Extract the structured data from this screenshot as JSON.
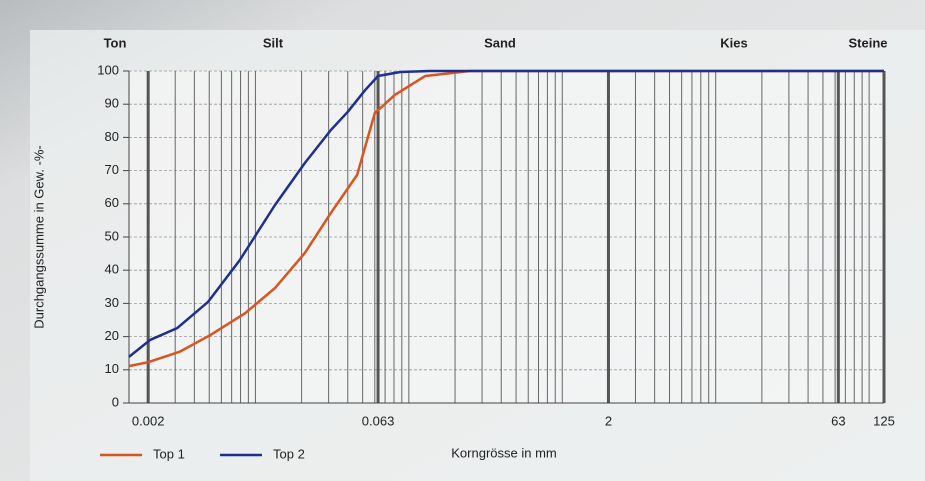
{
  "chart_data": {
    "type": "line",
    "zones": [
      "Ton",
      "Silt",
      "Sand",
      "Kies",
      "Steine"
    ],
    "x_label": "Korngrösse in mm",
    "y_label": "Durchgangssumme in Gew. -%-",
    "xlim": [
      0.0015,
      125
    ],
    "xticks": [
      0.002,
      0.063,
      2,
      63,
      125
    ],
    "ylim": [
      0,
      100
    ],
    "yticks": [
      0,
      10,
      20,
      30,
      40,
      50,
      60,
      70,
      80,
      90,
      100
    ],
    "log_x": true,
    "grid": true,
    "legend": "bottom-left",
    "series": [
      {
        "name": "Top 1",
        "color": "#d9541e",
        "x": [
          0.0015,
          0.002,
          0.0032,
          0.0051,
          0.0086,
          0.0134,
          0.021,
          0.031,
          0.046,
          0.06,
          0.081,
          0.128,
          0.25,
          125
        ],
        "values": [
          11.1,
          12.3,
          15.4,
          20.5,
          27.1,
          34.6,
          45.2,
          57.2,
          68.7,
          87.3,
          92.8,
          98.5,
          100,
          100
        ]
      },
      {
        "name": "Top 2",
        "color": "#1f2f8f",
        "x": [
          0.0015,
          0.00206,
          0.0031,
          0.0049,
          0.0079,
          0.0134,
          0.021,
          0.031,
          0.04,
          0.052,
          0.063,
          0.088,
          0.137,
          125
        ],
        "values": [
          13.9,
          19,
          22.6,
          30.4,
          43,
          59.6,
          72.3,
          82.2,
          87.7,
          94.3,
          98.5,
          99.7,
          100,
          100
        ]
      }
    ]
  }
}
